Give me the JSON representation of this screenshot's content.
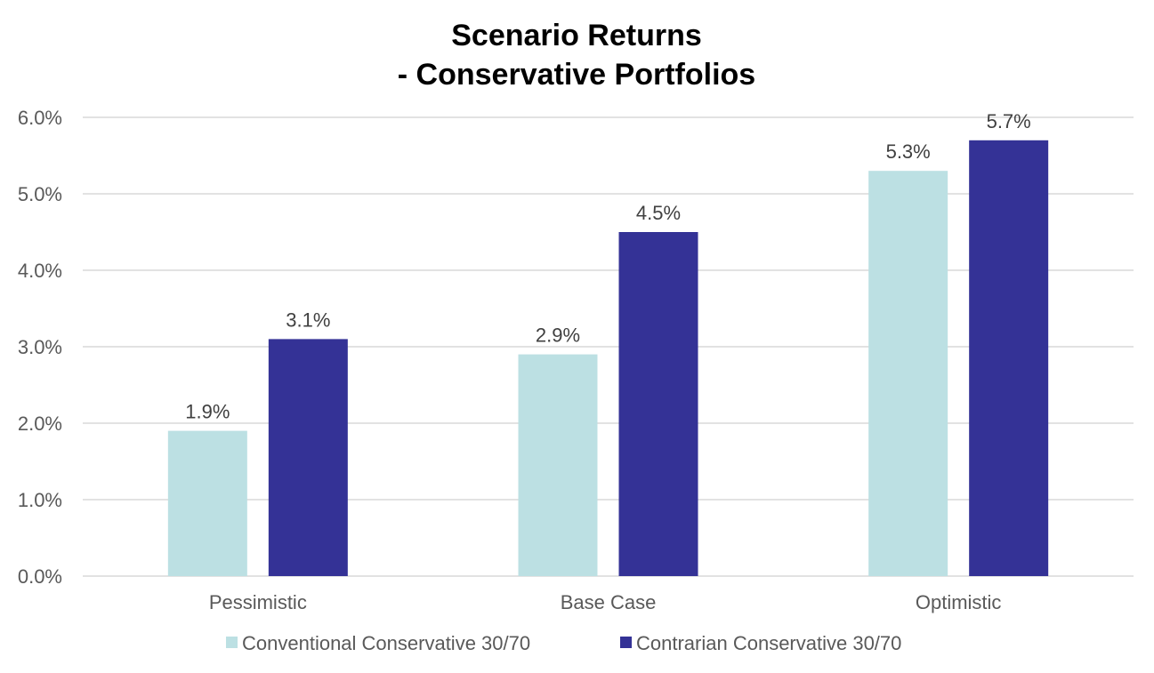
{
  "chart_data": {
    "type": "bar",
    "title": [
      "Scenario Returns",
      "- Conservative Portfolios"
    ],
    "categories": [
      "Pessimistic",
      "Base Case",
      "Optimistic"
    ],
    "series": [
      {
        "name": "Conventional Conservative 30/70",
        "color": "#bce0e3",
        "values": [
          1.9,
          2.9,
          5.3
        ],
        "labels": [
          "1.9%",
          "2.9%",
          "5.3%"
        ]
      },
      {
        "name": "Contrarian Conservative 30/70",
        "color": "#343296",
        "values": [
          3.1,
          4.5,
          5.7
        ],
        "labels": [
          "3.1%",
          "4.5%",
          "5.7%"
        ]
      }
    ],
    "ylim": [
      0,
      6
    ],
    "yticks": [
      0,
      1,
      2,
      3,
      4,
      5,
      6
    ],
    "ytick_labels": [
      "0.0%",
      "1.0%",
      "2.0%",
      "3.0%",
      "4.0%",
      "5.0%",
      "6.0%"
    ],
    "xlabel": "",
    "ylabel": "",
    "grid": true,
    "legend": "bottom"
  }
}
